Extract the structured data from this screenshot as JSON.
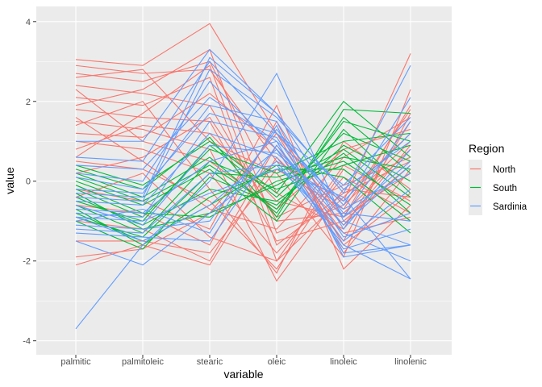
{
  "chart_data": {
    "type": "line",
    "subtype": "parallel-coordinates",
    "xlabel": "variable",
    "ylabel": "value",
    "categories": [
      "palmitic",
      "palmitoleic",
      "stearic",
      "oleic",
      "linoleic",
      "linolenic"
    ],
    "ylim": [
      -4.35,
      4.38
    ],
    "yticks": [
      4,
      2,
      0,
      -2,
      -4
    ],
    "ytick_labels": [
      "4",
      "2",
      "0",
      "-2",
      "-4"
    ],
    "grid": true,
    "legend": {
      "title": "Region",
      "position": "right",
      "entries": [
        "North",
        "South",
        "Sardinia"
      ]
    },
    "colors": {
      "North": "#F8766D",
      "South": "#00BA38",
      "Sardinia": "#619CFF"
    },
    "series": [
      {
        "name": "North",
        "lines": [
          [
            3.05,
            2.9,
            3.95,
            1.2,
            -0.9,
            1.9
          ],
          [
            2.9,
            2.7,
            2.8,
            0.5,
            -0.5,
            3.2
          ],
          [
            2.7,
            2.5,
            3.0,
            -0.3,
            -1.2,
            1.5
          ],
          [
            2.4,
            2.2,
            1.9,
            -1.0,
            -0.8,
            0.8
          ],
          [
            2.1,
            1.9,
            2.6,
            -2.0,
            -0.4,
            1.2
          ],
          [
            1.8,
            1.6,
            1.5,
            -1.5,
            -1.0,
            0.4
          ],
          [
            1.5,
            1.3,
            0.8,
            -2.5,
            -0.2,
            -0.4
          ],
          [
            1.2,
            1.1,
            2.2,
            0.8,
            -1.5,
            1.7
          ],
          [
            1.0,
            0.8,
            0.2,
            -1.8,
            0.1,
            -0.8
          ],
          [
            0.8,
            1.4,
            1.2,
            -0.5,
            -0.9,
            0.2
          ],
          [
            0.5,
            0.3,
            -0.5,
            -2.2,
            0.3,
            -1.0
          ],
          [
            0.2,
            0.6,
            1.6,
            -0.9,
            -0.1,
            0.6
          ],
          [
            -0.2,
            -0.5,
            -1.2,
            1.9,
            -2.2,
            -0.6
          ],
          [
            -0.6,
            -0.8,
            -1.6,
            1.5,
            -1.8,
            0.3
          ],
          [
            -1.0,
            -1.2,
            -2.0,
            0.9,
            -1.3,
            -0.9
          ],
          [
            -1.5,
            -1.5,
            -1.8,
            0.3,
            -0.7,
            1.8
          ],
          [
            -1.9,
            -1.7,
            -0.8,
            1.2,
            -1.6,
            -0.3
          ],
          [
            -2.1,
            -1.6,
            -2.1,
            0.6,
            -1.1,
            0.9
          ],
          [
            1.9,
            2.3,
            3.3,
            -1.3,
            -0.6,
            1.0
          ],
          [
            2.3,
            1.0,
            0.5,
            -0.7,
            0.8,
            1.3
          ],
          [
            1.4,
            2.0,
            -0.2,
            -2.3,
            1.0,
            -0.2
          ],
          [
            0.6,
            1.7,
            2.9,
            -1.6,
            -0.3,
            0.5
          ],
          [
            -0.4,
            0.2,
            -1.4,
            -2.0,
            0.4,
            -0.5
          ],
          [
            2.6,
            2.8,
            1.0,
            0.2,
            -1.9,
            2.3
          ],
          [
            1.6,
            0.5,
            -0.7,
            -1.2,
            0.6,
            1.6
          ]
        ]
      },
      {
        "name": "South",
        "lines": [
          [
            0.4,
            -0.1,
            1.0,
            -0.3,
            2.0,
            0.6
          ],
          [
            0.2,
            -0.4,
            0.6,
            -0.8,
            1.6,
            0.2
          ],
          [
            0.0,
            -0.6,
            0.3,
            -1.0,
            1.3,
            -0.3
          ],
          [
            -0.2,
            -0.9,
            0.8,
            0.2,
            1.0,
            1.2
          ],
          [
            -0.4,
            -1.1,
            -0.2,
            -0.5,
            0.7,
            -0.8
          ],
          [
            -0.6,
            -1.3,
            0.5,
            -0.2,
            0.4,
            0.9
          ],
          [
            -0.8,
            -1.5,
            -0.6,
            0.4,
            0.1,
            -1.3
          ],
          [
            -1.0,
            -1.7,
            0.1,
            -0.6,
            0.9,
            0.0
          ],
          [
            0.3,
            -0.2,
            1.1,
            -0.9,
            1.8,
            1.7
          ],
          [
            -0.1,
            -0.8,
            -0.9,
            0.0,
            0.5,
            -0.6
          ],
          [
            -0.5,
            -1.0,
            0.9,
            -0.4,
            1.2,
            0.5
          ],
          [
            -0.7,
            -1.6,
            -0.4,
            0.3,
            0.3,
            -1.0
          ],
          [
            0.1,
            -0.5,
            0.4,
            -0.7,
            1.5,
            1.0
          ],
          [
            -0.3,
            -1.2,
            -0.8,
            -0.1,
            0.8,
            -0.4
          ],
          [
            -0.9,
            -1.4,
            0.2,
            0.1,
            0.6,
            0.3
          ]
        ]
      },
      {
        "name": "Sardinia",
        "lines": [
          [
            1.0,
            1.0,
            3.3,
            1.7,
            -0.3,
            2.9
          ],
          [
            0.6,
            0.5,
            3.0,
            1.2,
            -0.6,
            2.1
          ],
          [
            0.2,
            0.0,
            2.5,
            0.8,
            -0.9,
            1.5
          ],
          [
            -0.2,
            -0.3,
            1.9,
            1.5,
            -1.2,
            0.8
          ],
          [
            -0.5,
            -0.6,
            1.2,
            0.6,
            -1.5,
            -0.2
          ],
          [
            -0.7,
            -0.8,
            0.5,
            1.0,
            -1.8,
            -1.6
          ],
          [
            -0.9,
            -1.0,
            -0.3,
            0.3,
            -0.4,
            -2.45
          ],
          [
            -1.1,
            -1.2,
            -1.0,
            1.3,
            -0.8,
            -1.0
          ],
          [
            -1.3,
            -1.4,
            -1.5,
            0.9,
            -1.1,
            0.4
          ],
          [
            -1.5,
            -2.1,
            -0.8,
            0.5,
            -1.6,
            -2.45
          ],
          [
            -3.7,
            -1.6,
            0.0,
            2.7,
            -1.0,
            -1.6
          ],
          [
            -0.4,
            -0.5,
            2.8,
            1.6,
            -0.2,
            1.0
          ],
          [
            -0.8,
            -0.9,
            1.5,
            1.1,
            -1.4,
            -0.8
          ],
          [
            -0.6,
            -1.1,
            0.9,
            0.7,
            -0.7,
            0.2
          ],
          [
            -1.0,
            -0.7,
            -1.3,
            1.4,
            -1.9,
            -1.6
          ],
          [
            0.4,
            0.3,
            2.1,
            1.0,
            -0.5,
            1.2
          ],
          [
            -1.2,
            -1.3,
            0.2,
            0.4,
            -1.3,
            -2.0
          ],
          [
            -0.3,
            -0.4,
            3.1,
            1.7,
            -0.9,
            0.5
          ],
          [
            -0.9,
            -1.5,
            -0.6,
            0.8,
            -1.7,
            -1.2
          ],
          [
            0.1,
            -0.2,
            1.7,
            1.2,
            -0.1,
            1.6
          ]
        ]
      }
    ]
  }
}
